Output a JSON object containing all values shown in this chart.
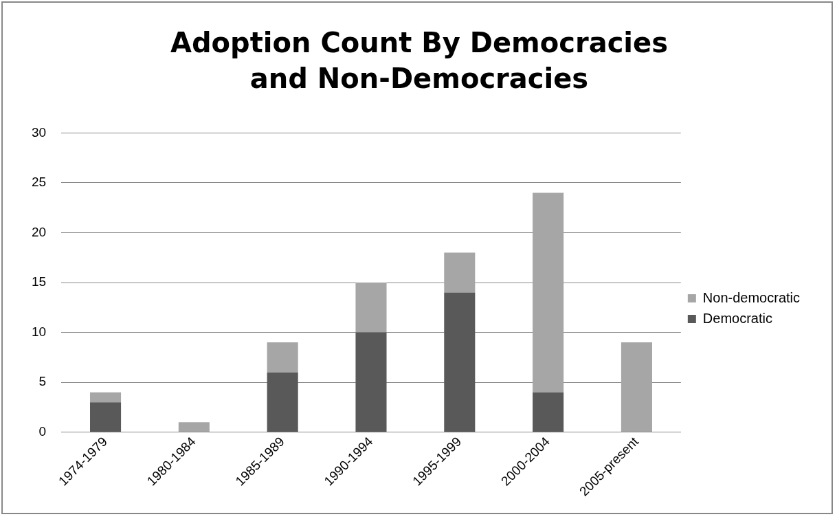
{
  "chart_data": {
    "type": "bar",
    "title": "Adoption Count By Democracies and Non-Democracies",
    "categories": [
      "1974-1979",
      "1980-1984",
      "1985-1989",
      "1990-1994",
      "1995-1999",
      "2000-2004",
      "2005-present"
    ],
    "series": [
      {
        "name": "Democratic",
        "color": "#595959",
        "values": [
          3,
          0,
          6,
          10,
          14,
          4,
          0
        ]
      },
      {
        "name": "Non-democratic",
        "color": "#a6a6a6",
        "values": [
          1,
          1,
          3,
          5,
          4,
          20,
          9
        ]
      }
    ],
    "stacked": true,
    "ylim": [
      0,
      30
    ],
    "yticks": [
      0,
      5,
      10,
      15,
      20,
      25,
      30
    ],
    "grid": "y",
    "legend": "right"
  }
}
